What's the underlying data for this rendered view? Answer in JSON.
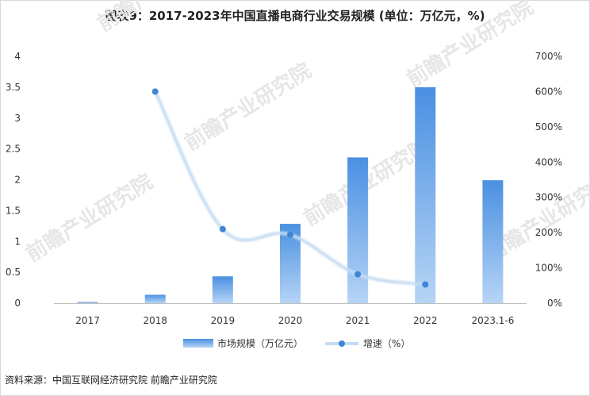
{
  "title": "图表9：2017-2023年中国直播电商行业交易规模 (单位：万亿元，%)",
  "source": "资料来源：中国互联网经济研究院 前瞻产业研究院",
  "watermark": "前瞻产业研究院",
  "chart_data": {
    "type": "bar",
    "categories": [
      "2017",
      "2018",
      "2019",
      "2020",
      "2021",
      "2022",
      "2023.1-6"
    ],
    "series": [
      {
        "name": "市场规模（万亿元）",
        "type": "bar",
        "axis": "left",
        "values": [
          0.0196,
          0.1354,
          0.4338,
          1.285,
          2.3615,
          3.5,
          1.9916
        ]
      },
      {
        "name": "增速（%）",
        "type": "line",
        "axis": "right",
        "values": [
          null,
          600,
          210,
          194,
          82,
          53,
          null
        ]
      }
    ],
    "y_left": {
      "min": 0,
      "max": 4,
      "ticks": [
        "0",
        "0.5",
        "1",
        "1.5",
        "2",
        "2.5",
        "3",
        "3.5",
        "4"
      ]
    },
    "y_right": {
      "min": 0,
      "max": 700,
      "ticks": [
        "0%",
        "100%",
        "200%",
        "300%",
        "400%",
        "500%",
        "600%",
        "700%"
      ]
    },
    "grid": false,
    "legend_position": "bottom",
    "colors": {
      "bar": "#5b9be4",
      "line": "#c5dcf2",
      "marker": "#3f86d6"
    }
  }
}
